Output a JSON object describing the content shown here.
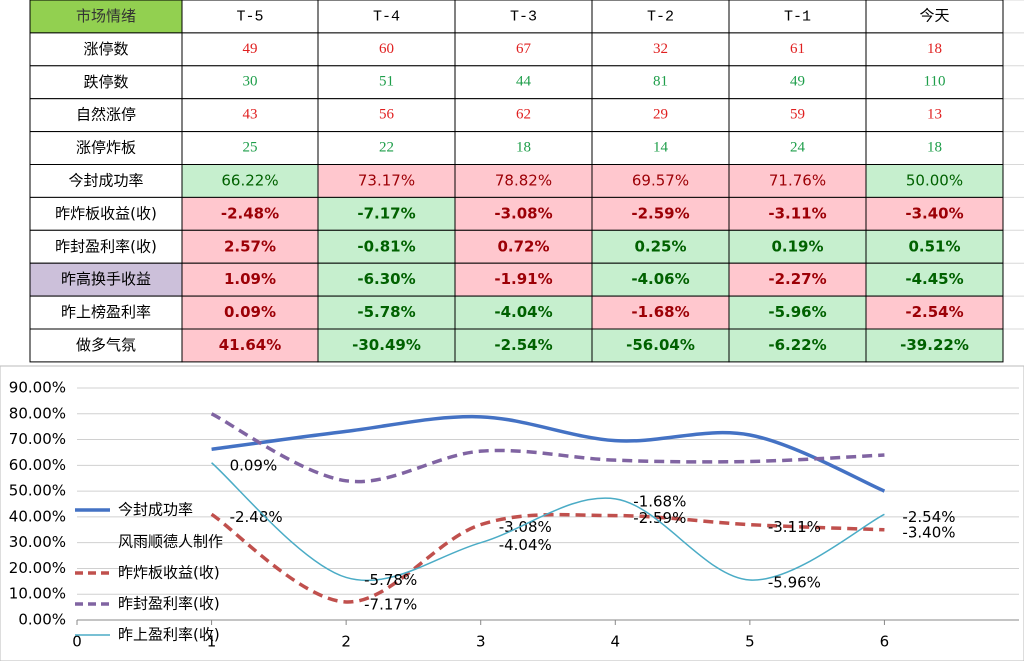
{
  "table": {
    "header": [
      "市场情绪",
      "T-5",
      "T-4",
      "T-3",
      "T-2",
      "T-1",
      "今天"
    ],
    "header_fill": "#92d050",
    "fill_text": {
      "#ffc7ce": "#9c0006",
      "#c6efce": "#006100"
    },
    "rows": [
      {
        "label": "涨停数",
        "cells": [
          "49",
          "60",
          "67",
          "32",
          "61",
          "18"
        ],
        "color": "#e02020"
      },
      {
        "label": "跌停数",
        "cells": [
          "30",
          "51",
          "44",
          "81",
          "49",
          "110"
        ],
        "color": "#1e9e4a"
      },
      {
        "label": "自然涨停",
        "cells": [
          "43",
          "56",
          "62",
          "29",
          "59",
          "13"
        ],
        "color": "#e02020"
      },
      {
        "label": "涨停炸板",
        "cells": [
          "25",
          "22",
          "18",
          "14",
          "24",
          "18"
        ],
        "color": "#1e9e4a"
      },
      {
        "label": "今封成功率",
        "cells": [
          "66.22%",
          "73.17%",
          "78.82%",
          "69.57%",
          "71.76%",
          "50.00%"
        ],
        "fills": [
          "#c6efce",
          "#ffc7ce",
          "#ffc7ce",
          "#ffc7ce",
          "#ffc7ce",
          "#c6efce"
        ]
      },
      {
        "label": "昨炸板收益(收)",
        "cells": [
          "-2.48%",
          "-7.17%",
          "-3.08%",
          "-2.59%",
          "-3.11%",
          "-3.40%"
        ],
        "fills": [
          "#ffc7ce",
          "#c6efce",
          "#ffc7ce",
          "#ffc7ce",
          "#ffc7ce",
          "#ffc7ce"
        ],
        "bold": true
      },
      {
        "label": "昨封盈利率(收)",
        "cells": [
          "2.57%",
          "-0.81%",
          "0.72%",
          "0.25%",
          "0.19%",
          "0.51%"
        ],
        "fills": [
          "#ffc7ce",
          "#c6efce",
          "#ffc7ce",
          "#c6efce",
          "#c6efce",
          "#c6efce"
        ],
        "bold": true
      },
      {
        "label": "昨高换手收益",
        "label_fill": "#ccc0da",
        "cells": [
          "1.09%",
          "-6.30%",
          "-1.91%",
          "-4.06%",
          "-2.27%",
          "-4.45%"
        ],
        "fills": [
          "#ffc7ce",
          "#c6efce",
          "#ffc7ce",
          "#c6efce",
          "#ffc7ce",
          "#c6efce"
        ],
        "bold": true
      },
      {
        "label": "昨上榜盈利率",
        "cells": [
          "0.09%",
          "-5.78%",
          "-4.04%",
          "-1.68%",
          "-5.96%",
          "-2.54%"
        ],
        "fills": [
          "#ffc7ce",
          "#c6efce",
          "#c6efce",
          "#ffc7ce",
          "#c6efce",
          "#ffc7ce"
        ],
        "bold": true
      },
      {
        "label": "做多气氛",
        "cells": [
          "41.64%",
          "-30.49%",
          "-2.54%",
          "-56.04%",
          "-6.22%",
          "-39.22%"
        ],
        "fills": [
          "#ffc7ce",
          "#c6efce",
          "#c6efce",
          "#c6efce",
          "#c6efce",
          "#c6efce"
        ],
        "bold": true
      }
    ]
  },
  "chart_data": {
    "type": "line",
    "xlim": [
      0,
      7
    ],
    "xticks": [
      0,
      1,
      2,
      3,
      4,
      5,
      6
    ],
    "ylim": [
      0,
      90
    ],
    "yticks": [
      {
        "value": 0,
        "label": "0.00%"
      },
      {
        "value": 10,
        "label": "10.00%"
      },
      {
        "value": 20,
        "label": "20.00%"
      },
      {
        "value": 30,
        "label": "30.00%"
      },
      {
        "value": 40,
        "label": "40.00%"
      },
      {
        "value": 50,
        "label": "50.00%"
      },
      {
        "value": 60,
        "label": "60.00%"
      },
      {
        "value": 70,
        "label": "70.00%"
      },
      {
        "value": 80,
        "label": "80.00%"
      },
      {
        "value": 90,
        "label": "90.00%"
      }
    ],
    "grid": true,
    "legend_note": "风雨顺德人制作",
    "x": [
      1,
      2,
      3,
      4,
      5,
      6
    ],
    "series": [
      {
        "name": "今封成功率",
        "color": "#4472c4",
        "width": 3.5,
        "values": [
          66.22,
          73.17,
          78.82,
          69.57,
          71.76,
          50.0
        ]
      },
      {
        "name": "昨炸板收益(收)",
        "color": "#c0504d",
        "width": 3.5,
        "dash": true,
        "values": [
          41,
          7,
          37,
          40.5,
          37,
          35
        ],
        "labels": [
          "-2.48%",
          "-7.17%",
          "-3.08%",
          "-2.59%",
          "-3.11%",
          "-3.40%"
        ]
      },
      {
        "name": "昨封盈利率(收)",
        "color": "#8064a2",
        "width": 3.5,
        "dash": true,
        "values": [
          80,
          54,
          65.5,
          62,
          61.5,
          64
        ]
      },
      {
        "name": "昨上盈利率(收)",
        "color": "#4bacc6",
        "width": 1.5,
        "values": [
          61,
          16.5,
          30,
          47,
          15.5,
          41
        ],
        "labels": [
          "0.09%",
          "-5.78%",
          "-4.04%",
          "-1.68%",
          "-5.96%",
          "-2.54%"
        ]
      }
    ]
  }
}
